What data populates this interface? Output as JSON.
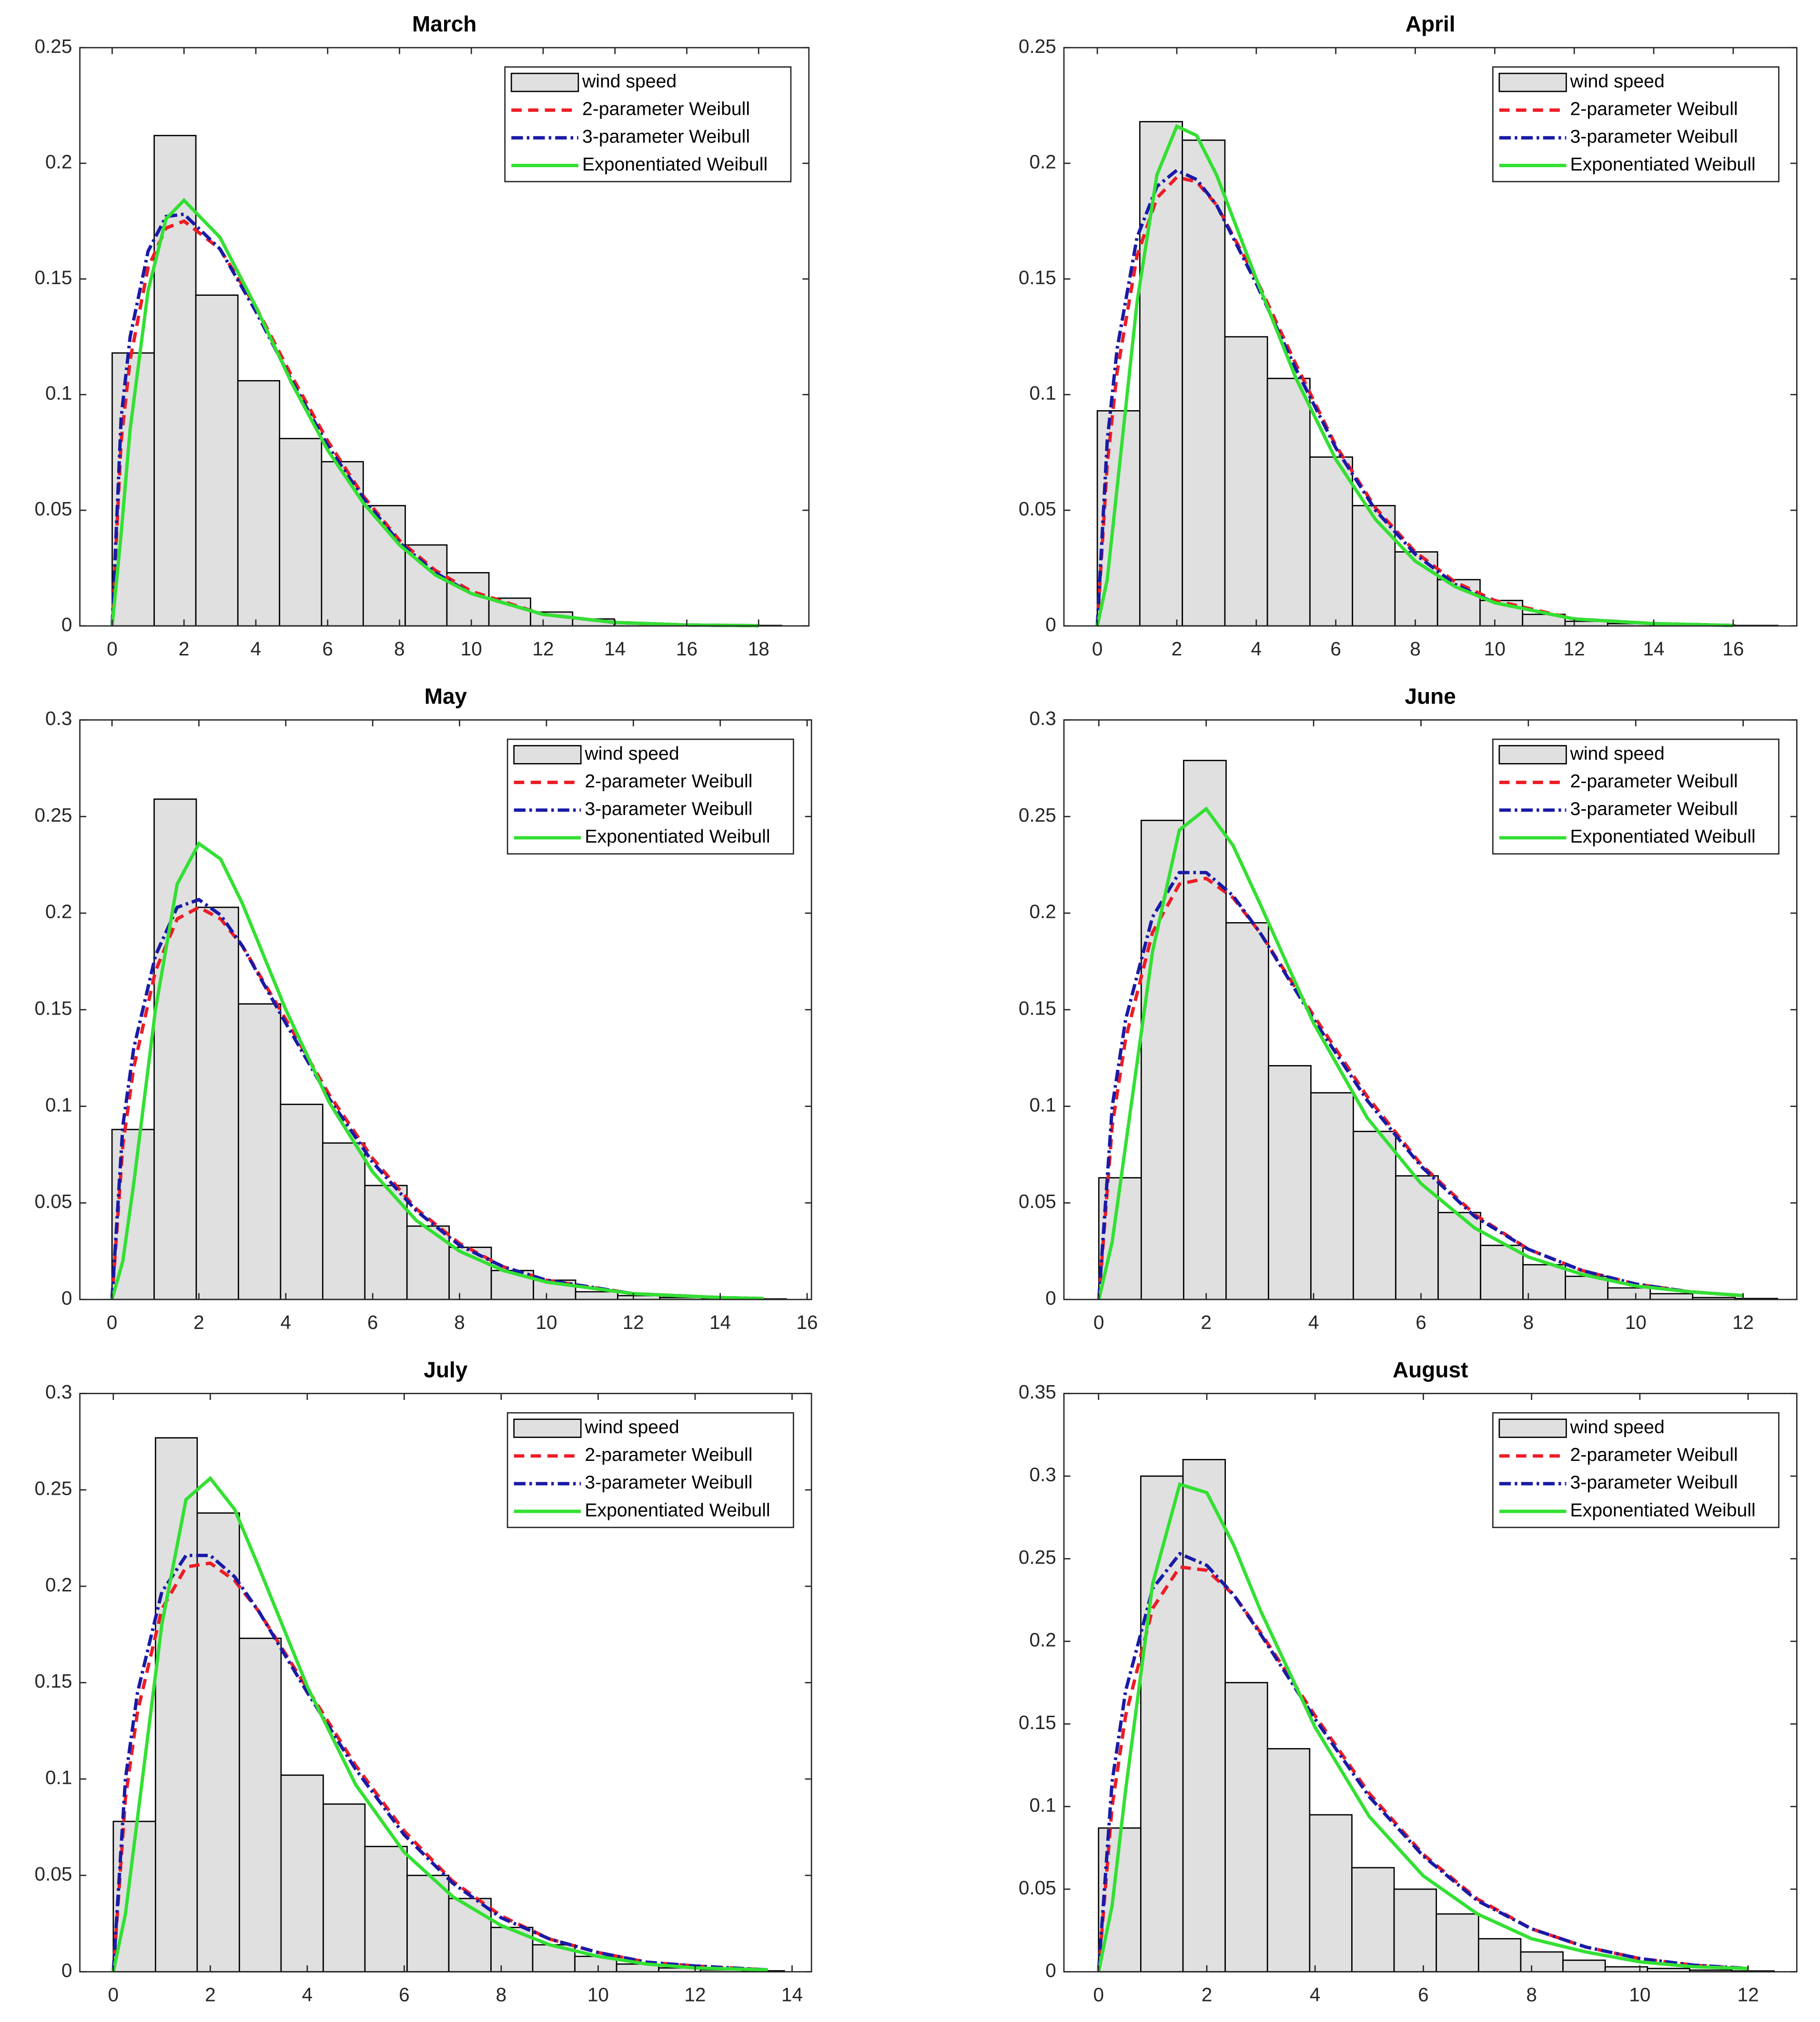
{
  "chart_data": [
    {
      "type": "histogram",
      "title": "March",
      "xlim": [
        -0.9,
        19.4
      ],
      "ylim": [
        0,
        0.25
      ],
      "xticks": [
        0,
        2,
        4,
        6,
        8,
        10,
        12,
        14,
        16,
        18
      ],
      "yticks": [
        0,
        0.05,
        0.1,
        0.15,
        0.2,
        0.25
      ],
      "histogram": {
        "name": "wind speed",
        "color": "#e0e0e0",
        "edgecolor": "#000000",
        "bins": [
          0,
          1.17,
          2.33,
          3.5,
          4.66,
          5.83,
          6.99,
          8.16,
          9.32,
          10.49,
          11.65,
          12.82,
          13.98,
          15.15,
          16.31,
          17.48,
          18.64
        ],
        "values": [
          0.118,
          0.212,
          0.143,
          0.106,
          0.081,
          0.071,
          0.052,
          0.035,
          0.023,
          0.012,
          0.006,
          0.003,
          0.001,
          0.0005,
          0.0003,
          0.0002
        ]
      },
      "x": [
        0,
        0.25,
        0.5,
        1,
        1.5,
        2,
        3,
        4,
        5,
        6,
        7,
        8,
        9,
        10,
        12,
        14,
        16,
        18
      ],
      "series": [
        {
          "name": "2-parameter Weibull",
          "color": "#ee1c25",
          "style": "dashed",
          "values": [
            0,
            0.08,
            0.115,
            0.155,
            0.172,
            0.175,
            0.163,
            0.138,
            0.108,
            0.08,
            0.056,
            0.037,
            0.024,
            0.015,
            0.005,
            0.0015,
            0.0004,
            0.0001
          ]
        },
        {
          "name": "3-parameter Weibull",
          "color": "#1a1aa6",
          "style": "dashdot",
          "values": [
            0,
            0.09,
            0.125,
            0.162,
            0.177,
            0.178,
            0.163,
            0.136,
            0.106,
            0.078,
            0.055,
            0.036,
            0.023,
            0.014,
            0.005,
            0.0015,
            0.0004,
            0.0001
          ]
        },
        {
          "name": "Exponentiated Weibull",
          "color": "#33e033",
          "style": "solid",
          "values": [
            0,
            0.04,
            0.085,
            0.145,
            0.176,
            0.184,
            0.168,
            0.138,
            0.105,
            0.076,
            0.053,
            0.035,
            0.022,
            0.014,
            0.005,
            0.0015,
            0.0004,
            0.0001
          ]
        }
      ]
    },
    {
      "type": "histogram",
      "title": "April",
      "xlim": [
        -0.84,
        17.6
      ],
      "ylim": [
        0,
        0.25
      ],
      "xticks": [
        0,
        2,
        4,
        6,
        8,
        10,
        12,
        14,
        16
      ],
      "yticks": [
        0,
        0.05,
        0.1,
        0.15,
        0.2,
        0.25
      ],
      "histogram": {
        "name": "wind speed",
        "color": "#e0e0e0",
        "edgecolor": "#000000",
        "bins": [
          0,
          1.07,
          2.14,
          3.21,
          4.28,
          5.35,
          6.42,
          7.49,
          8.56,
          9.63,
          10.7,
          11.77,
          12.84,
          13.91,
          14.98,
          16.05,
          17.12
        ],
        "values": [
          0.093,
          0.218,
          0.21,
          0.125,
          0.107,
          0.073,
          0.052,
          0.032,
          0.02,
          0.011,
          0.005,
          0.002,
          0.001,
          0.0005,
          0.0003,
          0.0002
        ]
      },
      "x": [
        0,
        0.25,
        0.5,
        1,
        1.5,
        2,
        2.5,
        3,
        4,
        5,
        6,
        7,
        8,
        9,
        10,
        12,
        14,
        16
      ],
      "series": [
        {
          "name": "2-parameter Weibull",
          "color": "#ee1c25",
          "style": "dashed",
          "values": [
            0,
            0.07,
            0.11,
            0.16,
            0.185,
            0.194,
            0.192,
            0.182,
            0.15,
            0.113,
            0.078,
            0.051,
            0.032,
            0.019,
            0.011,
            0.003,
            0.001,
            0.0002
          ]
        },
        {
          "name": "3-parameter Weibull",
          "color": "#1a1aa6",
          "style": "dashdot",
          "values": [
            0,
            0.08,
            0.12,
            0.168,
            0.19,
            0.197,
            0.193,
            0.182,
            0.148,
            0.111,
            0.077,
            0.05,
            0.031,
            0.018,
            0.01,
            0.003,
            0.001,
            0.0002
          ]
        },
        {
          "name": "Exponentiated Weibull",
          "color": "#33e033",
          "style": "solid",
          "values": [
            0,
            0.02,
            0.06,
            0.14,
            0.195,
            0.216,
            0.212,
            0.195,
            0.15,
            0.107,
            0.072,
            0.046,
            0.028,
            0.017,
            0.01,
            0.003,
            0.001,
            0.0002
          ]
        }
      ]
    },
    {
      "type": "histogram",
      "title": "May",
      "xlim": [
        -0.74,
        16.1
      ],
      "ylim": [
        0,
        0.3
      ],
      "xticks": [
        0,
        2,
        4,
        6,
        8,
        10,
        12,
        14,
        16
      ],
      "yticks": [
        0,
        0.05,
        0.1,
        0.15,
        0.2,
        0.25,
        0.3
      ],
      "histogram": {
        "name": "wind speed",
        "color": "#e0e0e0",
        "edgecolor": "#000000",
        "bins": [
          0,
          0.97,
          1.94,
          2.91,
          3.88,
          4.85,
          5.82,
          6.79,
          7.76,
          8.73,
          9.7,
          10.67,
          11.64,
          12.61,
          13.58,
          14.55,
          15.52
        ],
        "values": [
          0.088,
          0.259,
          0.203,
          0.153,
          0.101,
          0.081,
          0.059,
          0.038,
          0.027,
          0.015,
          0.01,
          0.004,
          0.002,
          0.001,
          0.0005,
          0.0003
        ]
      },
      "x": [
        0,
        0.25,
        0.5,
        1,
        1.5,
        2,
        2.5,
        3,
        4,
        5,
        6,
        7,
        8,
        9,
        10,
        12,
        14,
        15
      ],
      "series": [
        {
          "name": "2-parameter Weibull",
          "color": "#ee1c25",
          "style": "dashed",
          "values": [
            0,
            0.08,
            0.12,
            0.17,
            0.197,
            0.203,
            0.197,
            0.183,
            0.145,
            0.106,
            0.073,
            0.047,
            0.029,
            0.017,
            0.01,
            0.003,
            0.001,
            0.0005
          ]
        },
        {
          "name": "3-parameter Weibull",
          "color": "#1a1aa6",
          "style": "dashdot",
          "values": [
            0,
            0.09,
            0.13,
            0.178,
            0.203,
            0.207,
            0.199,
            0.183,
            0.143,
            0.104,
            0.071,
            0.046,
            0.028,
            0.017,
            0.01,
            0.003,
            0.001,
            0.0005
          ]
        },
        {
          "name": "Exponentiated Weibull",
          "color": "#33e033",
          "style": "solid",
          "values": [
            0,
            0.02,
            0.06,
            0.15,
            0.215,
            0.236,
            0.228,
            0.205,
            0.15,
            0.102,
            0.066,
            0.041,
            0.025,
            0.015,
            0.009,
            0.003,
            0.001,
            0.0005
          ]
        }
      ]
    },
    {
      "type": "histogram",
      "title": "June",
      "xlim": [
        -0.65,
        13.0
      ],
      "ylim": [
        0,
        0.3
      ],
      "xticks": [
        0,
        2,
        4,
        6,
        8,
        10,
        12
      ],
      "yticks": [
        0,
        0.05,
        0.1,
        0.15,
        0.2,
        0.25,
        0.3
      ],
      "histogram": {
        "name": "wind speed",
        "color": "#e0e0e0",
        "edgecolor": "#000000",
        "bins": [
          0,
          0.79,
          1.58,
          2.37,
          3.16,
          3.95,
          4.74,
          5.53,
          6.32,
          7.11,
          7.9,
          8.69,
          9.48,
          10.27,
          11.06,
          11.85,
          12.64
        ],
        "values": [
          0.063,
          0.248,
          0.279,
          0.195,
          0.121,
          0.107,
          0.087,
          0.064,
          0.045,
          0.028,
          0.018,
          0.012,
          0.006,
          0.003,
          0.001,
          0.0005
        ]
      },
      "x": [
        0,
        0.25,
        0.5,
        1,
        1.5,
        2,
        2.5,
        3,
        4,
        5,
        6,
        7,
        8,
        9,
        10,
        11,
        12
      ],
      "series": [
        {
          "name": "2-parameter Weibull",
          "color": "#ee1c25",
          "style": "dashed",
          "values": [
            0,
            0.09,
            0.135,
            0.19,
            0.215,
            0.218,
            0.208,
            0.19,
            0.147,
            0.105,
            0.07,
            0.044,
            0.026,
            0.015,
            0.008,
            0.004,
            0.002
          ]
        },
        {
          "name": "3-parameter Weibull",
          "color": "#1a1aa6",
          "style": "dashdot",
          "values": [
            0,
            0.1,
            0.145,
            0.198,
            0.221,
            0.221,
            0.209,
            0.19,
            0.145,
            0.103,
            0.069,
            0.043,
            0.026,
            0.015,
            0.008,
            0.004,
            0.002
          ]
        },
        {
          "name": "Exponentiated Weibull",
          "color": "#33e033",
          "style": "solid",
          "values": [
            0,
            0.03,
            0.08,
            0.18,
            0.243,
            0.254,
            0.235,
            0.205,
            0.143,
            0.094,
            0.06,
            0.037,
            0.022,
            0.013,
            0.007,
            0.004,
            0.002
          ]
        }
      ]
    },
    {
      "type": "histogram",
      "title": "July",
      "xlim": [
        -0.69,
        14.4
      ],
      "ylim": [
        0,
        0.3
      ],
      "xticks": [
        0,
        2,
        4,
        6,
        8,
        10,
        12,
        14
      ],
      "yticks": [
        0,
        0.05,
        0.1,
        0.15,
        0.2,
        0.25,
        0.3
      ],
      "histogram": {
        "name": "wind speed",
        "color": "#e0e0e0",
        "edgecolor": "#000000",
        "bins": [
          0,
          0.87,
          1.73,
          2.6,
          3.46,
          4.33,
          5.19,
          6.06,
          6.92,
          7.79,
          8.65,
          9.52,
          10.38,
          11.25,
          12.11,
          12.98,
          13.84
        ],
        "values": [
          0.078,
          0.277,
          0.238,
          0.173,
          0.102,
          0.087,
          0.065,
          0.05,
          0.038,
          0.023,
          0.014,
          0.008,
          0.004,
          0.002,
          0.001,
          0.0005
        ]
      },
      "x": [
        0,
        0.25,
        0.5,
        1,
        1.5,
        2,
        2.5,
        3,
        4,
        5,
        6,
        7,
        8,
        9,
        10,
        11,
        12,
        13.5
      ],
      "series": [
        {
          "name": "2-parameter Weibull",
          "color": "#ee1c25",
          "style": "dashed",
          "values": [
            0,
            0.09,
            0.135,
            0.188,
            0.21,
            0.212,
            0.203,
            0.187,
            0.147,
            0.107,
            0.073,
            0.047,
            0.029,
            0.017,
            0.01,
            0.005,
            0.003,
            0.001
          ]
        },
        {
          "name": "3-parameter Weibull",
          "color": "#1a1aa6",
          "style": "dashdot",
          "values": [
            0,
            0.1,
            0.145,
            0.197,
            0.216,
            0.216,
            0.205,
            0.187,
            0.145,
            0.105,
            0.071,
            0.046,
            0.028,
            0.017,
            0.01,
            0.005,
            0.003,
            0.001
          ]
        },
        {
          "name": "Exponentiated Weibull",
          "color": "#33e033",
          "style": "solid",
          "values": [
            0,
            0.03,
            0.08,
            0.18,
            0.245,
            0.256,
            0.24,
            0.21,
            0.148,
            0.097,
            0.062,
            0.039,
            0.024,
            0.014,
            0.008,
            0.004,
            0.002,
            0.001
          ]
        }
      ]
    },
    {
      "type": "histogram",
      "title": "August",
      "xlim": [
        -0.64,
        12.9
      ],
      "ylim": [
        0,
        0.35
      ],
      "xticks": [
        0,
        2,
        4,
        6,
        8,
        10,
        12
      ],
      "yticks": [
        0,
        0.05,
        0.1,
        0.15,
        0.2,
        0.25,
        0.3,
        0.35
      ],
      "histogram": {
        "name": "wind speed",
        "color": "#e0e0e0",
        "edgecolor": "#000000",
        "bins": [
          0,
          0.78,
          1.56,
          2.34,
          3.12,
          3.9,
          4.68,
          5.46,
          6.24,
          7.02,
          7.8,
          8.58,
          9.36,
          10.14,
          10.92,
          11.7,
          12.48
        ],
        "values": [
          0.087,
          0.3,
          0.31,
          0.175,
          0.135,
          0.095,
          0.063,
          0.05,
          0.035,
          0.02,
          0.012,
          0.007,
          0.003,
          0.002,
          0.001,
          0.0005
        ]
      },
      "x": [
        0,
        0.25,
        0.5,
        1,
        1.5,
        2,
        2.5,
        3,
        4,
        5,
        6,
        7,
        8,
        9,
        10,
        11,
        12
      ],
      "series": [
        {
          "name": "2-parameter Weibull",
          "color": "#ee1c25",
          "style": "dashed",
          "values": [
            0,
            0.1,
            0.155,
            0.22,
            0.245,
            0.243,
            0.228,
            0.205,
            0.155,
            0.108,
            0.071,
            0.044,
            0.026,
            0.015,
            0.008,
            0.004,
            0.002
          ]
        },
        {
          "name": "3-parameter Weibull",
          "color": "#1a1aa6",
          "style": "dashdot",
          "values": [
            0,
            0.115,
            0.17,
            0.232,
            0.253,
            0.246,
            0.228,
            0.204,
            0.153,
            0.106,
            0.07,
            0.043,
            0.026,
            0.015,
            0.008,
            0.004,
            0.002
          ]
        },
        {
          "name": "Exponentiated Weibull",
          "color": "#33e033",
          "style": "solid",
          "values": [
            0,
            0.04,
            0.11,
            0.235,
            0.295,
            0.29,
            0.258,
            0.218,
            0.148,
            0.094,
            0.058,
            0.035,
            0.02,
            0.012,
            0.006,
            0.003,
            0.002
          ]
        }
      ]
    }
  ]
}
